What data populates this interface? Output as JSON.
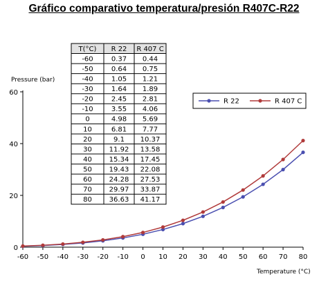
{
  "title": "Gráfico comparativo temperatura/presión R407C-R22",
  "chart_data": {
    "type": "line",
    "ylabel": "Pressure (bar)",
    "xlabel": "Temperature (°C)",
    "xlim": [
      -60,
      80
    ],
    "ylim": [
      0,
      60
    ],
    "x_ticks": [
      "-60",
      "-50",
      "-40",
      "-30",
      "-20",
      "-10",
      "0",
      "10",
      "20",
      "30",
      "40",
      "50",
      "60",
      "70",
      "80"
    ],
    "y_ticks": [
      "0",
      "20",
      "40",
      "60"
    ],
    "legend_position": "right",
    "x": [
      -60,
      -50,
      -40,
      -30,
      -20,
      -10,
      0,
      10,
      20,
      30,
      40,
      50,
      60,
      70,
      80
    ],
    "series": [
      {
        "name": "R 22",
        "color": "#4a4fb0",
        "values": [
          0.37,
          0.64,
          1.05,
          1.64,
          2.45,
          3.55,
          4.98,
          6.81,
          9.1,
          11.92,
          15.34,
          19.43,
          24.28,
          29.97,
          36.63
        ]
      },
      {
        "name": "R 407 C",
        "color": "#b03a3a",
        "values": [
          0.44,
          0.75,
          1.21,
          1.89,
          2.81,
          4.06,
          5.69,
          7.77,
          10.37,
          13.58,
          17.45,
          22.08,
          27.53,
          33.87,
          41.17
        ]
      }
    ],
    "table": {
      "headers": [
        "T(°C)",
        "R 22",
        "R 407 C"
      ],
      "rows": [
        [
          "-60",
          "0.37",
          "0.44"
        ],
        [
          "-50",
          "0.64",
          "0.75"
        ],
        [
          "-40",
          "1.05",
          "1.21"
        ],
        [
          "-30",
          "1.64",
          "1.89"
        ],
        [
          "-20",
          "2.45",
          "2.81"
        ],
        [
          "-10",
          "3.55",
          "4.06"
        ],
        [
          "0",
          "4.98",
          "5.69"
        ],
        [
          "10",
          "6.81",
          "7.77"
        ],
        [
          "20",
          "9.1",
          "10.37"
        ],
        [
          "30",
          "11.92",
          "13.58"
        ],
        [
          "40",
          "15.34",
          "17.45"
        ],
        [
          "50",
          "19.43",
          "22.08"
        ],
        [
          "60",
          "24.28",
          "27.53"
        ],
        [
          "70",
          "29.97",
          "33.87"
        ],
        [
          "80",
          "36.63",
          "41.17"
        ]
      ]
    }
  }
}
